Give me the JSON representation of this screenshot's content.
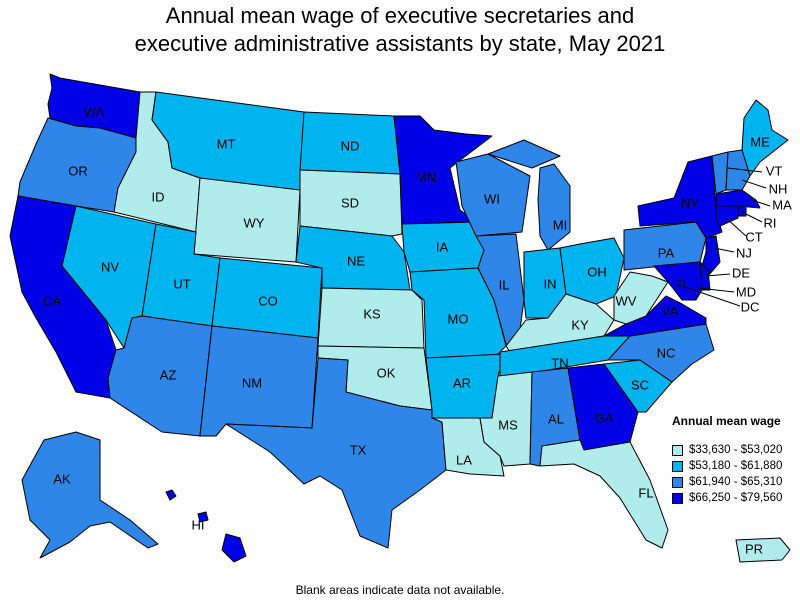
{
  "title_line1": "Annual mean wage of executive secretaries and",
  "title_line2": "executive administrative assistants by state, May 2021",
  "legend": {
    "title": "Annual mean wage",
    "bins": [
      {
        "label": "$33,630 - $53,020",
        "color": "#b0ecec"
      },
      {
        "label": "$53,180 - $61,880",
        "color": "#00b4f0"
      },
      {
        "label": "$61,940 - $65,310",
        "color": "#2e86e8"
      },
      {
        "label": "$66,250 - $79,560",
        "color": "#0000e8"
      }
    ]
  },
  "footnote": "Blank areas indicate data not available.",
  "states": [
    {
      "code": "WA",
      "bin": 3
    },
    {
      "code": "OR",
      "bin": 2
    },
    {
      "code": "CA",
      "bin": 3
    },
    {
      "code": "ID",
      "bin": 0
    },
    {
      "code": "NV",
      "bin": 1
    },
    {
      "code": "MT",
      "bin": 1
    },
    {
      "code": "WY",
      "bin": 0
    },
    {
      "code": "UT",
      "bin": 1
    },
    {
      "code": "AZ",
      "bin": 2
    },
    {
      "code": "CO",
      "bin": 1
    },
    {
      "code": "NM",
      "bin": 2
    },
    {
      "code": "ND",
      "bin": 1
    },
    {
      "code": "SD",
      "bin": 0
    },
    {
      "code": "NE",
      "bin": 1
    },
    {
      "code": "KS",
      "bin": 0
    },
    {
      "code": "OK",
      "bin": 0
    },
    {
      "code": "TX",
      "bin": 2
    },
    {
      "code": "MN",
      "bin": 3
    },
    {
      "code": "IA",
      "bin": 1
    },
    {
      "code": "MO",
      "bin": 1
    },
    {
      "code": "AR",
      "bin": 1
    },
    {
      "code": "LA",
      "bin": 0
    },
    {
      "code": "WI",
      "bin": 2
    },
    {
      "code": "IL",
      "bin": 2
    },
    {
      "code": "MI",
      "bin": 2
    },
    {
      "code": "IN",
      "bin": 1
    },
    {
      "code": "OH",
      "bin": 1
    },
    {
      "code": "KY",
      "bin": 0
    },
    {
      "code": "TN",
      "bin": 1
    },
    {
      "code": "MS",
      "bin": 0
    },
    {
      "code": "AL",
      "bin": 2
    },
    {
      "code": "GA",
      "bin": 3
    },
    {
      "code": "FL",
      "bin": 0
    },
    {
      "code": "SC",
      "bin": 1
    },
    {
      "code": "NC",
      "bin": 2
    },
    {
      "code": "VA",
      "bin": 3
    },
    {
      "code": "WV",
      "bin": 0
    },
    {
      "code": "PA",
      "bin": 2
    },
    {
      "code": "NY",
      "bin": 3
    },
    {
      "code": "ME",
      "bin": 1
    },
    {
      "code": "VT",
      "bin": 2
    },
    {
      "code": "NH",
      "bin": 2
    },
    {
      "code": "MA",
      "bin": 3
    },
    {
      "code": "RI",
      "bin": 3
    },
    {
      "code": "CT",
      "bin": 3
    },
    {
      "code": "NJ",
      "bin": 3
    },
    {
      "code": "DE",
      "bin": 3
    },
    {
      "code": "MD",
      "bin": 3
    },
    {
      "code": "DC",
      "bin": 3
    },
    {
      "code": "AK",
      "bin": 2
    },
    {
      "code": "HI",
      "bin": 3
    },
    {
      "code": "PR",
      "bin": 0
    }
  ]
}
